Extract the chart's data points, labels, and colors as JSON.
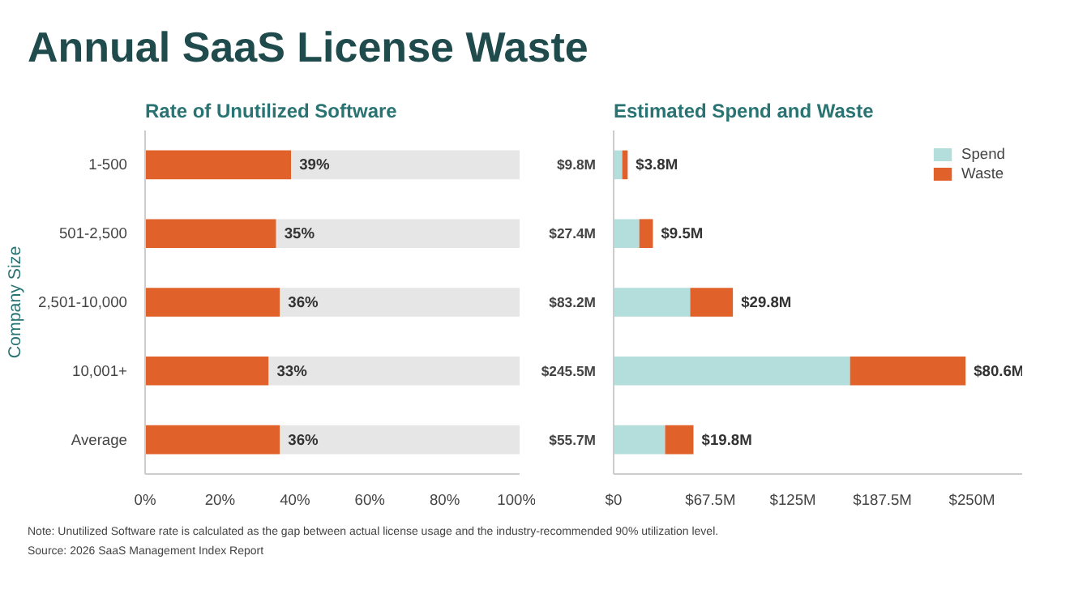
{
  "chart_data": [
    {
      "type": "bar",
      "title": "Annual SaaS License Waste",
      "subtitle": "Rate of Unutilized Software",
      "ylabel": "Company Size",
      "orientation": "horizontal",
      "stacked": true,
      "categories": [
        "1-500",
        "501-2,500",
        "2,501-10,000",
        "10,001+",
        "Average"
      ],
      "series": [
        {
          "color": "#e0622a",
          "values": [
            39,
            35,
            36,
            33,
            36
          ],
          "value_labels": [
            "39%",
            "35%",
            "36%",
            "33%",
            "36%"
          ]
        },
        {
          "color": "#e6e6e6",
          "values": [
            61,
            65,
            64,
            67,
            64
          ]
        }
      ],
      "xlim": [
        0,
        100
      ],
      "xticks": [
        {
          "value": 0,
          "label": "0%"
        },
        {
          "value": 20,
          "label": "20%"
        },
        {
          "value": 40,
          "label": "40%"
        },
        {
          "value": 60,
          "label": "60%"
        },
        {
          "value": 80,
          "label": "80%"
        },
        {
          "value": 100,
          "label": "100%"
        }
      ],
      "grid": false,
      "annotations": [
        "Note: Unutilized Software rate is calculated as the gap between actual license usage and the industry-recommended 90% utilization level.",
        "Source: 2026 SaaS Management Index Report"
      ]
    },
    {
      "type": "bar",
      "title": "Estimated Spend and Waste",
      "orientation": "horizontal",
      "stacked": true,
      "categories": [
        null,
        null,
        null,
        null,
        null
      ],
      "tick_labels": "x",
      "series": [
        {
          "name": "Spend",
          "color": "#b3dedc",
          "values": [
            6.0,
            17.9,
            53.4,
            164.9,
            35.9
          ]
        },
        {
          "name": "Waste",
          "color": "#e0622a",
          "values": [
            3.8,
            9.5,
            29.8,
            80.6,
            19.8
          ],
          "value_labels": [
            "$3.8M",
            "$9.5M",
            "$29.8M",
            "$80.6M",
            "$19.8M"
          ]
        }
      ],
      "totals": [
        "$9.8M",
        "$27.4M",
        "$83.2M",
        "$245.5M",
        "$55.7M"
      ],
      "xlim": [
        0,
        285
      ],
      "xticks": [
        {
          "value": 0,
          "label": "$0"
        },
        {
          "value": 67.5,
          "label": "$67.5M"
        },
        {
          "value": 125,
          "label": "$125M"
        },
        {
          "value": 187.5,
          "label": "$187.5M"
        },
        {
          "value": 250,
          "label": "$250M"
        }
      ],
      "grid": false,
      "legend": "top right"
    }
  ]
}
